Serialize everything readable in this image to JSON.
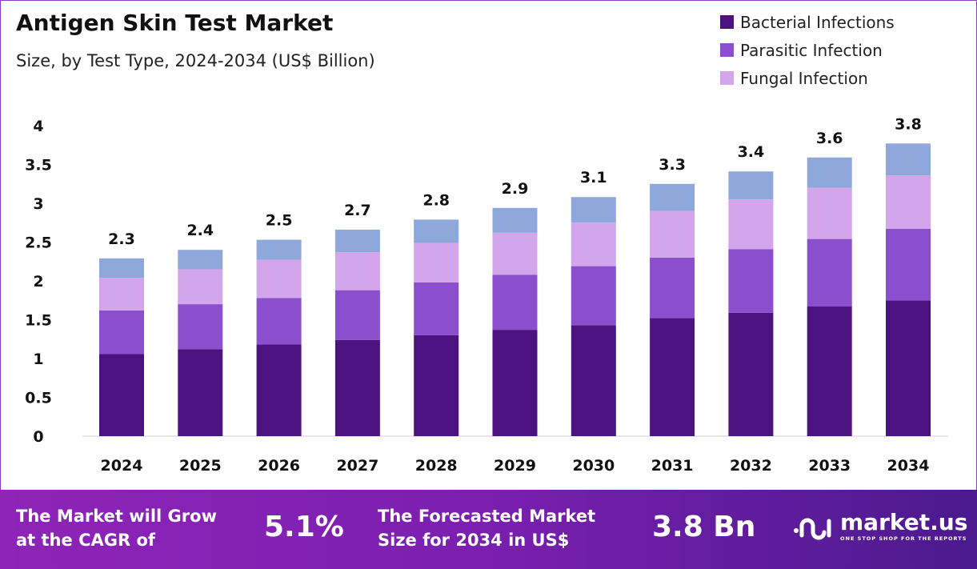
{
  "chart_data": {
    "type": "bar",
    "stacked": true,
    "title": "Antigen Skin Test Market",
    "subtitle": "Size, by Test Type, 2024-2034 (US$ Billion)",
    "categories": [
      "2024",
      "2025",
      "2026",
      "2027",
      "2028",
      "2029",
      "2030",
      "2031",
      "2032",
      "2033",
      "2034"
    ],
    "series": [
      {
        "name": "Bacterial Infections",
        "color": "#4b1380",
        "values": [
          1.06,
          1.12,
          1.18,
          1.24,
          1.3,
          1.37,
          1.43,
          1.52,
          1.59,
          1.67,
          1.75
        ]
      },
      {
        "name": "Parasitic Infection",
        "color": "#8b4fce",
        "values": [
          0.56,
          0.58,
          0.6,
          0.64,
          0.68,
          0.71,
          0.76,
          0.78,
          0.82,
          0.87,
          0.92
        ]
      },
      {
        "name": "Fungal Infection",
        "color": "#d3a6ec",
        "values": [
          0.42,
          0.45,
          0.49,
          0.49,
          0.51,
          0.54,
          0.56,
          0.6,
          0.64,
          0.66,
          0.69
        ]
      },
      {
        "color": "#8fa8dc",
        "values": [
          0.25,
          0.25,
          0.26,
          0.29,
          0.3,
          0.32,
          0.33,
          0.35,
          0.36,
          0.39,
          0.41
        ]
      }
    ],
    "totals": [
      "2.3",
      "2.4",
      "2.5",
      "2.7",
      "2.8",
      "2.9",
      "3.1",
      "3.3",
      "3.4",
      "3.6",
      "3.8"
    ],
    "yticks": [
      "0",
      "0.5",
      "1",
      "1.5",
      "2",
      "2.5",
      "3",
      "3.5",
      "4"
    ],
    "ylim": [
      0,
      4
    ],
    "grid": false,
    "legend_position": "top-right"
  },
  "footer": {
    "cagr_label_1": "The Market will Grow",
    "cagr_label_2": "at the CAGR of",
    "cagr_value": "5.1%",
    "forecast_label_1": "The Forecasted Market",
    "forecast_label_2": "Size for 2034 in US$",
    "forecast_value": "3.8 Bn",
    "logo_name": "market.us",
    "logo_tagline": "ONE STOP SHOP FOR THE REPORTS"
  }
}
